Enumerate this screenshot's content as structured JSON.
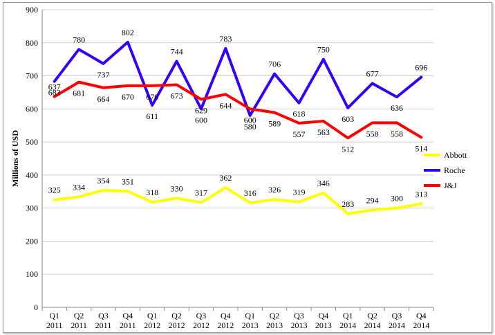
{
  "chart_data": {
    "type": "line",
    "title": "",
    "ylabel": "Millions of USD",
    "xlabel": "",
    "ylim": [
      0,
      900
    ],
    "ytick_step": 100,
    "grid": true,
    "legend_position": "right",
    "categories": [
      [
        "Q1",
        "2011"
      ],
      [
        "Q2",
        "2011"
      ],
      [
        "Q3",
        "2011"
      ],
      [
        "Q4",
        "2011"
      ],
      [
        "Q1",
        "2012"
      ],
      [
        "Q2",
        "2012"
      ],
      [
        "Q3",
        "2012"
      ],
      [
        "Q4",
        "2012"
      ],
      [
        "Q1",
        "2013"
      ],
      [
        "Q2",
        "2013"
      ],
      [
        "Q3",
        "2013"
      ],
      [
        "Q4",
        "2013"
      ],
      [
        "Q1",
        "2014"
      ],
      [
        "Q2",
        "2014"
      ],
      [
        "Q3",
        "2014"
      ],
      [
        "Q4",
        "2014"
      ]
    ],
    "series": [
      {
        "name": "Abbott",
        "color": "#ffff00",
        "values": [
          325,
          334,
          354,
          351,
          318,
          330,
          317,
          362,
          316,
          326,
          319,
          346,
          283,
          294,
          300,
          313
        ],
        "label_position": "above"
      },
      {
        "name": "Roche",
        "color": "#3300ff",
        "values": [
          683,
          780,
          737,
          802,
          611,
          744,
          600,
          783,
          580,
          706,
          618,
          750,
          603,
          677,
          636,
          696
        ],
        "label_position": "alternate"
      },
      {
        "name": "J&J",
        "color": "#ff0000",
        "values": [
          637,
          681,
          664,
          670,
          670,
          673,
          629,
          644,
          600,
          589,
          557,
          563,
          512,
          558,
          558,
          514
        ],
        "label_position": "alternate"
      }
    ]
  }
}
